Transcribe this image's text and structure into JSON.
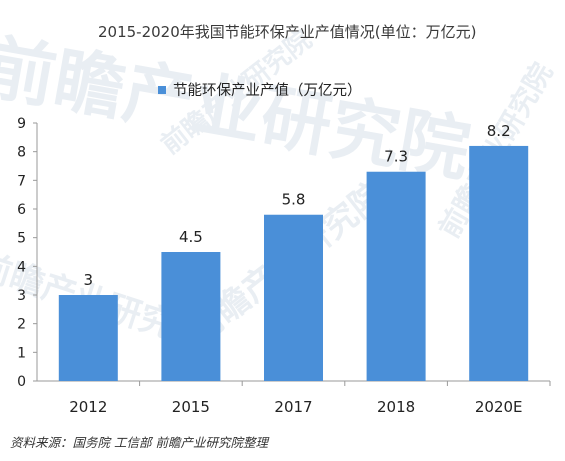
{
  "chart_data": {
    "type": "bar",
    "title": "2015-2020年我国节能环保产业产值情况(单位：万亿元)",
    "categories": [
      "2012",
      "2015",
      "2017",
      "2018",
      "2020E"
    ],
    "series": [
      {
        "name": "节能环保产业产值（万亿元）",
        "values": [
          3,
          4.5,
          5.8,
          7.3,
          8.2
        ]
      }
    ],
    "data_labels": [
      "3",
      "4.5",
      "5.8",
      "7.3",
      "8.2"
    ],
    "y_ticks": [
      "0",
      "1",
      "2",
      "3",
      "4",
      "5",
      "6",
      "7",
      "8",
      "9"
    ],
    "ylim": [
      0,
      9
    ],
    "xlabel": "",
    "ylabel": "",
    "grid": false,
    "legend_position": "top",
    "bar_color": "#4a8fd8"
  },
  "source_note": "资料来源：国务院 工信部 前瞻产业研究院整理",
  "watermark_text": "前瞻产业研究院"
}
